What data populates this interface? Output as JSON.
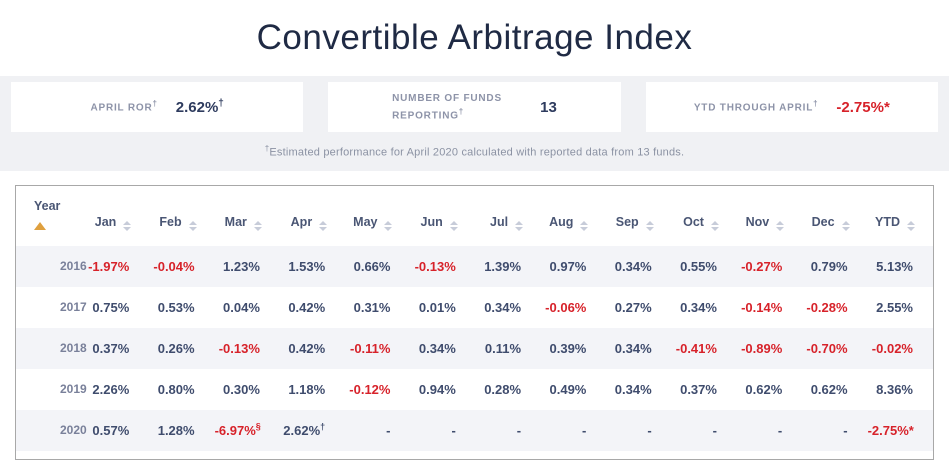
{
  "colors": {
    "title-navy": "#1f2a44",
    "value-navy": "#2e3b5e",
    "negative-red": "#d7222a",
    "sort-active-orange": "#dfa03f"
  },
  "page": {
    "title": "Convertible Arbitrage Index"
  },
  "stats": [
    {
      "id": "april-ror",
      "label": "APRIL ROR",
      "label_sup": "†",
      "value": "2.62%",
      "value_sup": "†",
      "negative": false
    },
    {
      "id": "funds-reporting",
      "label": "NUMBER OF FUNDS REPORTING",
      "label_sup": "†",
      "value": "13",
      "value_sup": "",
      "negative": false
    },
    {
      "id": "ytd-through-april",
      "label": "YTD THROUGH APRIL",
      "label_sup": "†",
      "value": "-2.75%*",
      "value_sup": "",
      "negative": true
    }
  ],
  "footnote": {
    "sup": "†",
    "text": "Estimated performance for April 2020 calculated with reported data from 13 funds."
  },
  "table": {
    "year_header": "Year",
    "months": [
      "Jan",
      "Feb",
      "Mar",
      "Apr",
      "May",
      "Jun",
      "Jul",
      "Aug",
      "Sep",
      "Oct",
      "Nov",
      "Dec",
      "YTD"
    ],
    "rows": [
      {
        "year": "2016",
        "cells": [
          {
            "v": "-1.97%",
            "neg": true
          },
          {
            "v": "-0.04%",
            "neg": true
          },
          {
            "v": "1.23%"
          },
          {
            "v": "1.53%"
          },
          {
            "v": "0.66%"
          },
          {
            "v": "-0.13%",
            "neg": true
          },
          {
            "v": "1.39%"
          },
          {
            "v": "0.97%"
          },
          {
            "v": "0.34%"
          },
          {
            "v": "0.55%"
          },
          {
            "v": "-0.27%",
            "neg": true
          },
          {
            "v": "0.79%"
          },
          {
            "v": "5.13%"
          }
        ]
      },
      {
        "year": "2017",
        "cells": [
          {
            "v": "0.75%"
          },
          {
            "v": "0.53%"
          },
          {
            "v": "0.04%"
          },
          {
            "v": "0.42%"
          },
          {
            "v": "0.31%"
          },
          {
            "v": "0.01%"
          },
          {
            "v": "0.34%"
          },
          {
            "v": "-0.06%",
            "neg": true
          },
          {
            "v": "0.27%"
          },
          {
            "v": "0.34%"
          },
          {
            "v": "-0.14%",
            "neg": true
          },
          {
            "v": "-0.28%",
            "neg": true
          },
          {
            "v": "2.55%"
          }
        ]
      },
      {
        "year": "2018",
        "cells": [
          {
            "v": "0.37%"
          },
          {
            "v": "0.26%"
          },
          {
            "v": "-0.13%",
            "neg": true
          },
          {
            "v": "0.42%"
          },
          {
            "v": "-0.11%",
            "neg": true
          },
          {
            "v": "0.34%"
          },
          {
            "v": "0.11%"
          },
          {
            "v": "0.39%"
          },
          {
            "v": "0.34%"
          },
          {
            "v": "-0.41%",
            "neg": true
          },
          {
            "v": "-0.89%",
            "neg": true
          },
          {
            "v": "-0.70%",
            "neg": true
          },
          {
            "v": "-0.02%",
            "neg": true
          }
        ]
      },
      {
        "year": "2019",
        "cells": [
          {
            "v": "2.26%"
          },
          {
            "v": "0.80%"
          },
          {
            "v": "0.30%"
          },
          {
            "v": "1.18%"
          },
          {
            "v": "-0.12%",
            "neg": true
          },
          {
            "v": "0.94%"
          },
          {
            "v": "0.28%"
          },
          {
            "v": "0.49%"
          },
          {
            "v": "0.34%"
          },
          {
            "v": "0.37%"
          },
          {
            "v": "0.62%"
          },
          {
            "v": "0.62%"
          },
          {
            "v": "8.36%"
          }
        ]
      },
      {
        "year": "2020",
        "cells": [
          {
            "v": "0.57%"
          },
          {
            "v": "1.28%"
          },
          {
            "v": "-6.97%",
            "sup": "§",
            "neg": true
          },
          {
            "v": "2.62%",
            "sup": "†"
          },
          {
            "v": "-"
          },
          {
            "v": "-"
          },
          {
            "v": "-"
          },
          {
            "v": "-"
          },
          {
            "v": "-"
          },
          {
            "v": "-"
          },
          {
            "v": "-"
          },
          {
            "v": "-"
          },
          {
            "v": "-2.75%*",
            "neg": true
          }
        ]
      }
    ]
  }
}
